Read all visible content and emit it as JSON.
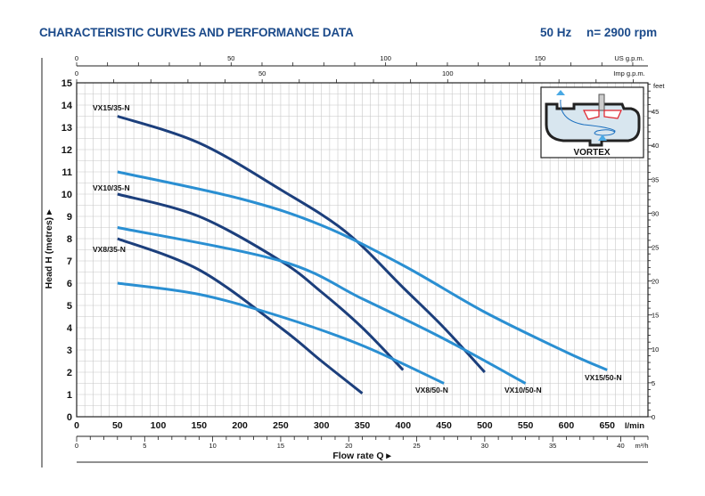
{
  "header": {
    "title": "CHARACTERISTIC CURVES AND PERFORMANCE DATA",
    "frequency": "50 Hz",
    "speed": "n= 2900 rpm"
  },
  "inset": {
    "label": "VORTEX"
  },
  "colors": {
    "series_35": "#1c3f7c",
    "series_50": "#2a8fd2",
    "title": "#1b4a8a",
    "grid": "#c8c8c8"
  },
  "chart_data": {
    "type": "line",
    "xlabel": "Flow rate Q",
    "ylabel": "Head H (metres)",
    "xlim": [
      0,
      700
    ],
    "ylim": [
      0,
      15
    ],
    "grid": true,
    "x_unit": "l/min",
    "x_ticks": [
      0,
      50,
      100,
      150,
      200,
      250,
      300,
      350,
      400,
      450,
      500,
      550,
      600,
      650
    ],
    "y_ticks": [
      0,
      1,
      2,
      3,
      4,
      5,
      6,
      7,
      8,
      9,
      10,
      11,
      12,
      13,
      14,
      15
    ],
    "secondary_axes": {
      "us_gpm": {
        "unit": "US g.p.m.",
        "ticks": [
          0,
          50,
          100,
          150
        ]
      },
      "imp_gpm": {
        "unit": "Imp g.p.m.",
        "ticks": [
          0,
          50,
          100
        ]
      },
      "m3h": {
        "unit": "m³/h",
        "ticks": [
          0,
          5,
          10,
          15,
          20,
          25,
          30,
          35,
          40
        ]
      },
      "feet": {
        "unit": "feet",
        "ticks": [
          0,
          5,
          10,
          15,
          20,
          25,
          30,
          35,
          40,
          45
        ]
      }
    },
    "series": [
      {
        "name": "VX15/35-N",
        "kind": "35",
        "x": [
          50,
          150,
          250,
          330,
          400,
          450,
          500
        ],
        "y": [
          13.5,
          12.3,
          10.2,
          8.3,
          5.8,
          4.0,
          2.0
        ]
      },
      {
        "name": "VX10/35-N",
        "kind": "35",
        "x": [
          50,
          150,
          250,
          300,
          350,
          400
        ],
        "y": [
          10.0,
          9.0,
          7.0,
          5.6,
          4.0,
          2.1
        ]
      },
      {
        "name": "VX8/35-N",
        "kind": "35",
        "x": [
          50,
          150,
          250,
          300,
          350
        ],
        "y": [
          8.0,
          6.6,
          4.0,
          2.5,
          1.05
        ]
      },
      {
        "name": "VX15/50-N",
        "kind": "50",
        "x": [
          50,
          200,
          300,
          400,
          500,
          600,
          650
        ],
        "y": [
          11.0,
          9.8,
          8.6,
          6.8,
          4.7,
          2.9,
          2.1
        ]
      },
      {
        "name": "VX10/50-N",
        "kind": "50",
        "x": [
          50,
          250,
          350,
          450,
          550
        ],
        "y": [
          8.5,
          7.0,
          5.3,
          3.5,
          1.5
        ]
      },
      {
        "name": "VX8/50-N",
        "kind": "50",
        "x": [
          50,
          150,
          250,
          350,
          450
        ],
        "y": [
          6.0,
          5.5,
          4.5,
          3.2,
          1.5
        ]
      }
    ]
  }
}
